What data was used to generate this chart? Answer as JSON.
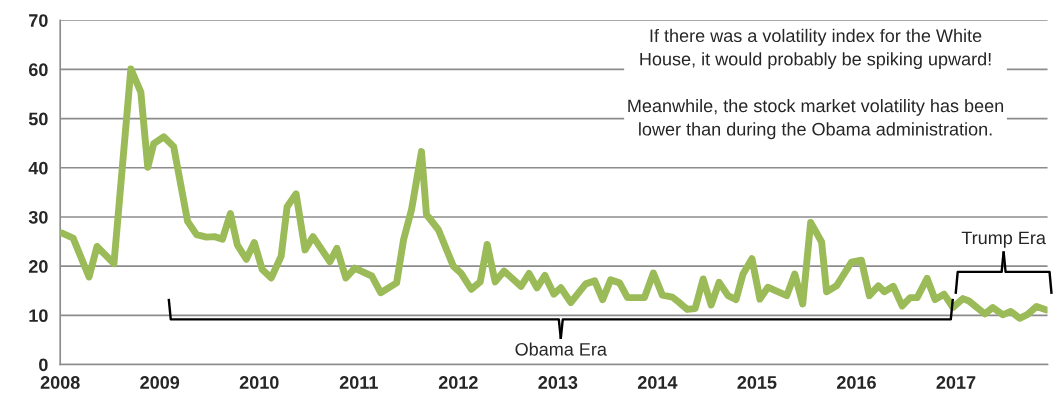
{
  "chart_data": {
    "type": "line",
    "x": [
      2008.02,
      2008.13,
      2008.29,
      2008.37,
      2008.54,
      2008.71,
      2008.81,
      2008.88,
      2008.94,
      2009.04,
      2009.14,
      2009.28,
      2009.37,
      2009.47,
      2009.55,
      2009.63,
      2009.71,
      2009.78,
      2009.87,
      2009.95,
      2010.03,
      2010.12,
      2010.22,
      2010.28,
      2010.37,
      2010.46,
      2010.54,
      2010.71,
      2010.78,
      2010.87,
      2010.96,
      2011.13,
      2011.22,
      2011.38,
      2011.45,
      2011.53,
      2011.63,
      2011.68,
      2011.8,
      2011.95,
      2012.03,
      2012.13,
      2012.22,
      2012.29,
      2012.37,
      2012.46,
      2012.63,
      2012.71,
      2012.79,
      2012.87,
      2012.96,
      2013.03,
      2013.13,
      2013.28,
      2013.37,
      2013.45,
      2013.53,
      2013.62,
      2013.7,
      2013.87,
      2013.96,
      2014.05,
      2014.15,
      2014.22,
      2014.3,
      2014.38,
      2014.46,
      2014.54,
      2014.62,
      2014.71,
      2014.79,
      2014.86,
      2014.95,
      2015.03,
      2015.11,
      2015.3,
      2015.38,
      2015.46,
      2015.54,
      2015.65,
      2015.7,
      2015.8,
      2015.95,
      2016.05,
      2016.13,
      2016.22,
      2016.28,
      2016.37,
      2016.46,
      2016.54,
      2016.61,
      2016.71,
      2016.79,
      2016.88,
      2016.97,
      2017.07,
      2017.13,
      2017.29,
      2017.37,
      2017.47,
      2017.55,
      2017.64,
      2017.72,
      2017.81,
      2017.91
    ],
    "series": [
      {
        "color": "#9bbb59",
        "values": [
          26.7,
          25.7,
          17.8,
          24.0,
          20.5,
          60.1,
          55.4,
          40.1,
          44.9,
          46.3,
          44.3,
          29.1,
          26.4,
          25.9,
          26.0,
          25.5,
          30.7,
          24.3,
          21.4,
          24.8,
          19.3,
          17.6,
          22.0,
          32.1,
          34.7,
          23.3,
          26.0,
          20.9,
          23.6,
          17.6,
          19.6,
          18.0,
          14.6,
          16.6,
          25.4,
          31.5,
          43.3,
          30.5,
          27.4,
          20.0,
          18.5,
          15.3,
          16.8,
          24.4,
          16.8,
          19.0,
          15.9,
          18.5,
          15.6,
          18.1,
          14.3,
          15.6,
          12.6,
          16.4,
          17.0,
          13.2,
          17.2,
          16.6,
          13.6,
          13.6,
          18.6,
          14.1,
          13.7,
          12.6,
          11.2,
          11.4,
          17.4,
          12.1,
          16.7,
          14.0,
          13.2,
          18.4,
          21.5,
          13.3,
          15.7,
          14.0,
          18.4,
          12.3,
          28.9,
          24.9,
          14.8,
          16.0,
          20.8,
          21.2,
          14.0,
          16.0,
          14.8,
          15.9,
          11.9,
          13.6,
          13.6,
          17.5,
          13.2,
          14.3,
          11.6,
          13.4,
          12.9,
          10.3,
          11.6,
          10.1,
          10.8,
          9.4,
          10.2,
          11.8,
          11.1
        ]
      }
    ],
    "xlim": [
      2008,
      2017.92
    ],
    "xticks": [
      2008,
      2009,
      2010,
      2011,
      2012,
      2013,
      2014,
      2015,
      2016,
      2017
    ],
    "ylim": [
      0,
      70
    ],
    "yticks": [
      0,
      10,
      20,
      30,
      40,
      50,
      60,
      70
    ],
    "grid": "y",
    "marker": "none",
    "line_style": "solid",
    "annotations": [
      "Obama Era",
      "Trump Era",
      "If there was a volatility index for the White\nHouse, it would probably be spiking upward!\n\nMeanwhile, the stock market volatility has been\nlower than during the Obama administration."
    ]
  }
}
